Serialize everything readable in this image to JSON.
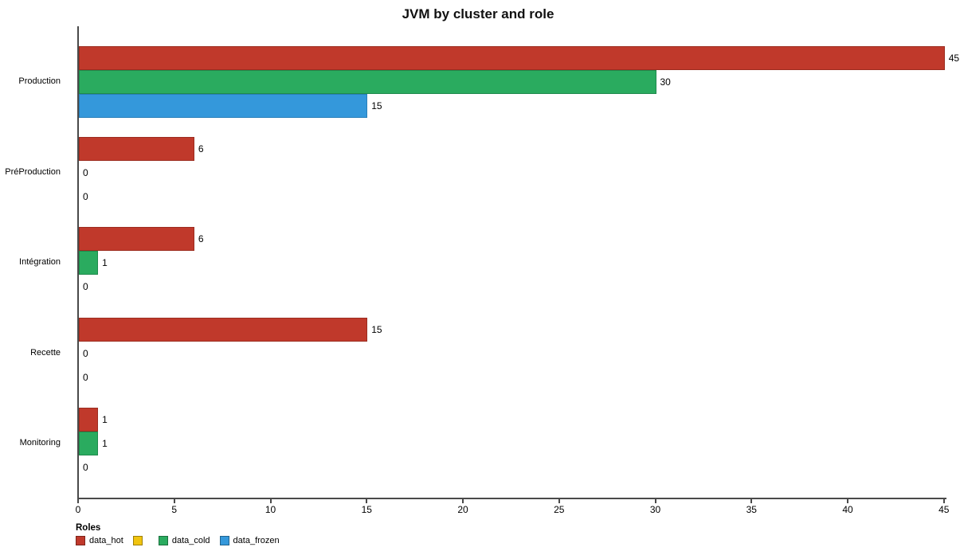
{
  "chart_data": {
    "type": "bar",
    "orientation": "horizontal",
    "title": "JVM by cluster and role",
    "categories": [
      "Production",
      "PréProduction",
      "Intégration",
      "Recette",
      "Monitoring"
    ],
    "series": [
      {
        "name": "data_hot",
        "color": "#c0392b",
        "border_color": "#9c2d20",
        "values": [
          45,
          6,
          6,
          15,
          1
        ]
      },
      {
        "name": "data_cold",
        "color": "#2aab5f",
        "border_color": "#1f8a4c",
        "values": [
          30,
          0,
          1,
          0,
          1
        ]
      },
      {
        "name": "data_frozen",
        "color": "#3498db",
        "border_color": "#2980b9",
        "values": [
          15,
          0,
          0,
          0,
          0
        ]
      }
    ],
    "value_labels": [
      [
        "45",
        "30",
        "15"
      ],
      [
        "6",
        "0",
        "0"
      ],
      [
        "6",
        "1",
        "0"
      ],
      [
        "15",
        "0",
        "0"
      ],
      [
        "1",
        "1",
        "0"
      ]
    ],
    "x_axis": {
      "min": 0,
      "max": 45,
      "tick_step": 5,
      "ticks": [
        "0",
        "5",
        "10",
        "15",
        "20",
        "25",
        "30",
        "35",
        "40",
        "45"
      ]
    },
    "legend": {
      "title": "Roles",
      "entries": [
        {
          "label": "data_hot",
          "color": "#c0392b"
        },
        {
          "label": "",
          "color": "#f1c40f"
        },
        {
          "label": "data_cold",
          "color": "#2aab5f"
        },
        {
          "label": "data_frozen",
          "color": "#3498db"
        }
      ]
    },
    "grid": false,
    "legend_position": "bottom-left"
  }
}
